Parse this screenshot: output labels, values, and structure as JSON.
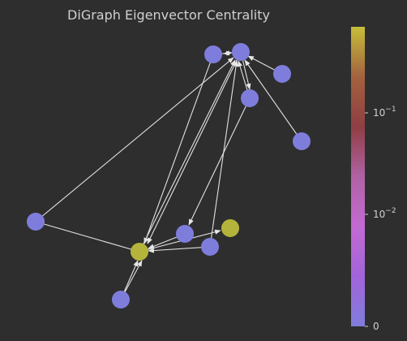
{
  "title": "DiGraph Eigenvector Centrality",
  "colorbar": {
    "ticks": [
      {
        "label_base": "10",
        "label_exp": "−1",
        "value": 0.1
      },
      {
        "label_base": "10",
        "label_exp": "−2",
        "value": 0.01
      },
      {
        "label_base": "0",
        "label_exp": "",
        "value": 0
      }
    ],
    "gradient": [
      "#c5be3a",
      "#a3623e",
      "#8f3e43",
      "#b062a4",
      "#c36ad2",
      "#a264db",
      "#7f7ddc"
    ],
    "node_low_color": "#7f7ddc",
    "node_high_color": "#b4b43c"
  },
  "nodes": [
    {
      "id": "n0",
      "level": "low"
    },
    {
      "id": "n1",
      "level": "low"
    },
    {
      "id": "n2",
      "level": "low"
    },
    {
      "id": "n3",
      "level": "low"
    },
    {
      "id": "n4",
      "level": "low"
    },
    {
      "id": "n5",
      "level": "low"
    },
    {
      "id": "n6",
      "level": "low"
    },
    {
      "id": "n7",
      "level": "low"
    },
    {
      "id": "n8",
      "level": "high"
    },
    {
      "id": "n9",
      "level": "high"
    },
    {
      "id": "n10",
      "level": "low"
    }
  ],
  "edges": [
    [
      "n4",
      "n9"
    ],
    [
      "n10",
      "n9"
    ],
    [
      "n6",
      "n9"
    ],
    [
      "n7",
      "n9"
    ],
    [
      "n9",
      "n1"
    ],
    [
      "n9",
      "n0"
    ],
    [
      "n9",
      "n1"
    ],
    [
      "n0",
      "n9"
    ],
    [
      "n1",
      "n0"
    ],
    [
      "n2",
      "n1"
    ],
    [
      "n3",
      "n1"
    ],
    [
      "n4",
      "n0"
    ],
    [
      "n1",
      "n5"
    ],
    [
      "n5",
      "n6"
    ],
    [
      "n6",
      "n9"
    ],
    [
      "n7",
      "n1"
    ],
    [
      "n6",
      "n8"
    ],
    [
      "n5",
      "n9"
    ],
    [
      "n7",
      "n9"
    ]
  ]
}
